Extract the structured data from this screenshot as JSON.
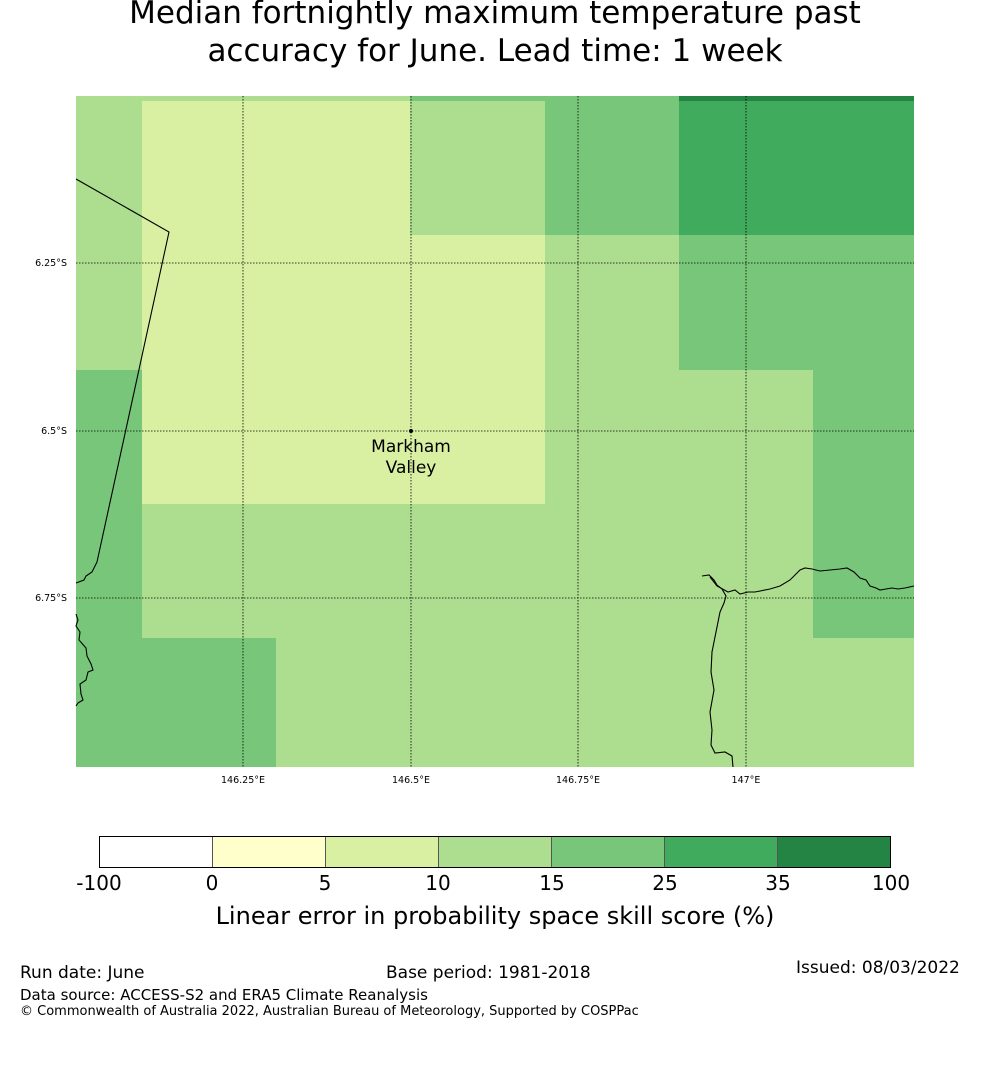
{
  "title": {
    "line1": "Median fortnightly maximum temperature past",
    "line2": "accuracy for June. Lead time: 1 week"
  },
  "map": {
    "location_label_line1": "Markham",
    "location_label_line2": "Valley",
    "lat_labels": [
      "6.25°S",
      "6.5°S",
      "6.75°S"
    ],
    "lon_labels": [
      "146.25°E",
      "146.5°E",
      "146.75°E",
      "147°E"
    ],
    "grid_values": [
      [
        10,
        5,
        5,
        10,
        15,
        25,
        25
      ],
      [
        10,
        5,
        5,
        5,
        10,
        15,
        15
      ],
      [
        15,
        5,
        5,
        5,
        10,
        10,
        15
      ],
      [
        15,
        10,
        10,
        10,
        10,
        10,
        15
      ],
      [
        15,
        15,
        10,
        10,
        10,
        10,
        10
      ]
    ]
  },
  "colorbar": {
    "ticks": [
      "-100",
      "0",
      "5",
      "10",
      "15",
      "25",
      "35",
      "100"
    ],
    "colors": [
      "#ffffff",
      "#ffffcc",
      "#d9f0a3",
      "#addd8e",
      "#78c679",
      "#41ab5d",
      "#238443"
    ],
    "label": "Linear error in probability space skill score (%)"
  },
  "footer": {
    "run_date": "Run date: June",
    "base_period": "Base period: 1981-2018",
    "issued": "Issued: 08/03/2022",
    "data_source": "Data source: ACCESS-S2 and ERA5 Climate Reanalysis",
    "copyright": "© Commonwealth of Australia 2022, Australian Bureau of Meteorology, Supported by COSPPac"
  }
}
